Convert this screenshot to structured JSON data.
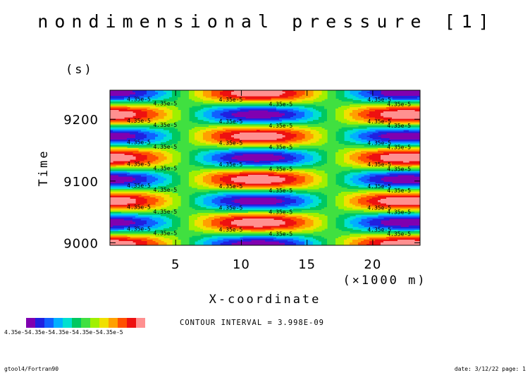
{
  "chart_data": {
    "type": "heatmap",
    "title": "nondimensional pressure [1]",
    "ylabel": "Time",
    "yunit": "(s)",
    "xlabel": "X-coordinate",
    "xunit": "(×1000 m)",
    "xlim": [
      0,
      23.6
    ],
    "ylim": [
      8996,
      9247
    ],
    "x_ticks": [
      5,
      10,
      15,
      20
    ],
    "y_ticks": [
      9000,
      9100,
      9200
    ],
    "field": {
      "model": "standing wave pattern p(x,t) = cos(2*pi*x/22.5) * cos(2*pi*(t-8998)/70)",
      "x_wavelength_km": 22.5,
      "period_s": 70,
      "phase_ref_time": 8998
    },
    "contour_label": "4.35e-5",
    "contour_interval_text": "CONTOUR INTERVAL = 3.998E-09",
    "colorbar": {
      "colors": [
        "#8000b0",
        "#2020e0",
        "#1060ff",
        "#00b0ff",
        "#00e0d0",
        "#00c860",
        "#40e040",
        "#a0f000",
        "#f0e000",
        "#ffa000",
        "#ff5000",
        "#ee1010",
        "#ff9090"
      ],
      "label_text": "4.35e-54.35e-54.35e-54.35e-54.35e-5"
    },
    "footer_left": "gtool4/Fortran90",
    "footer_right": "date: 3/12/22 page: 1"
  }
}
